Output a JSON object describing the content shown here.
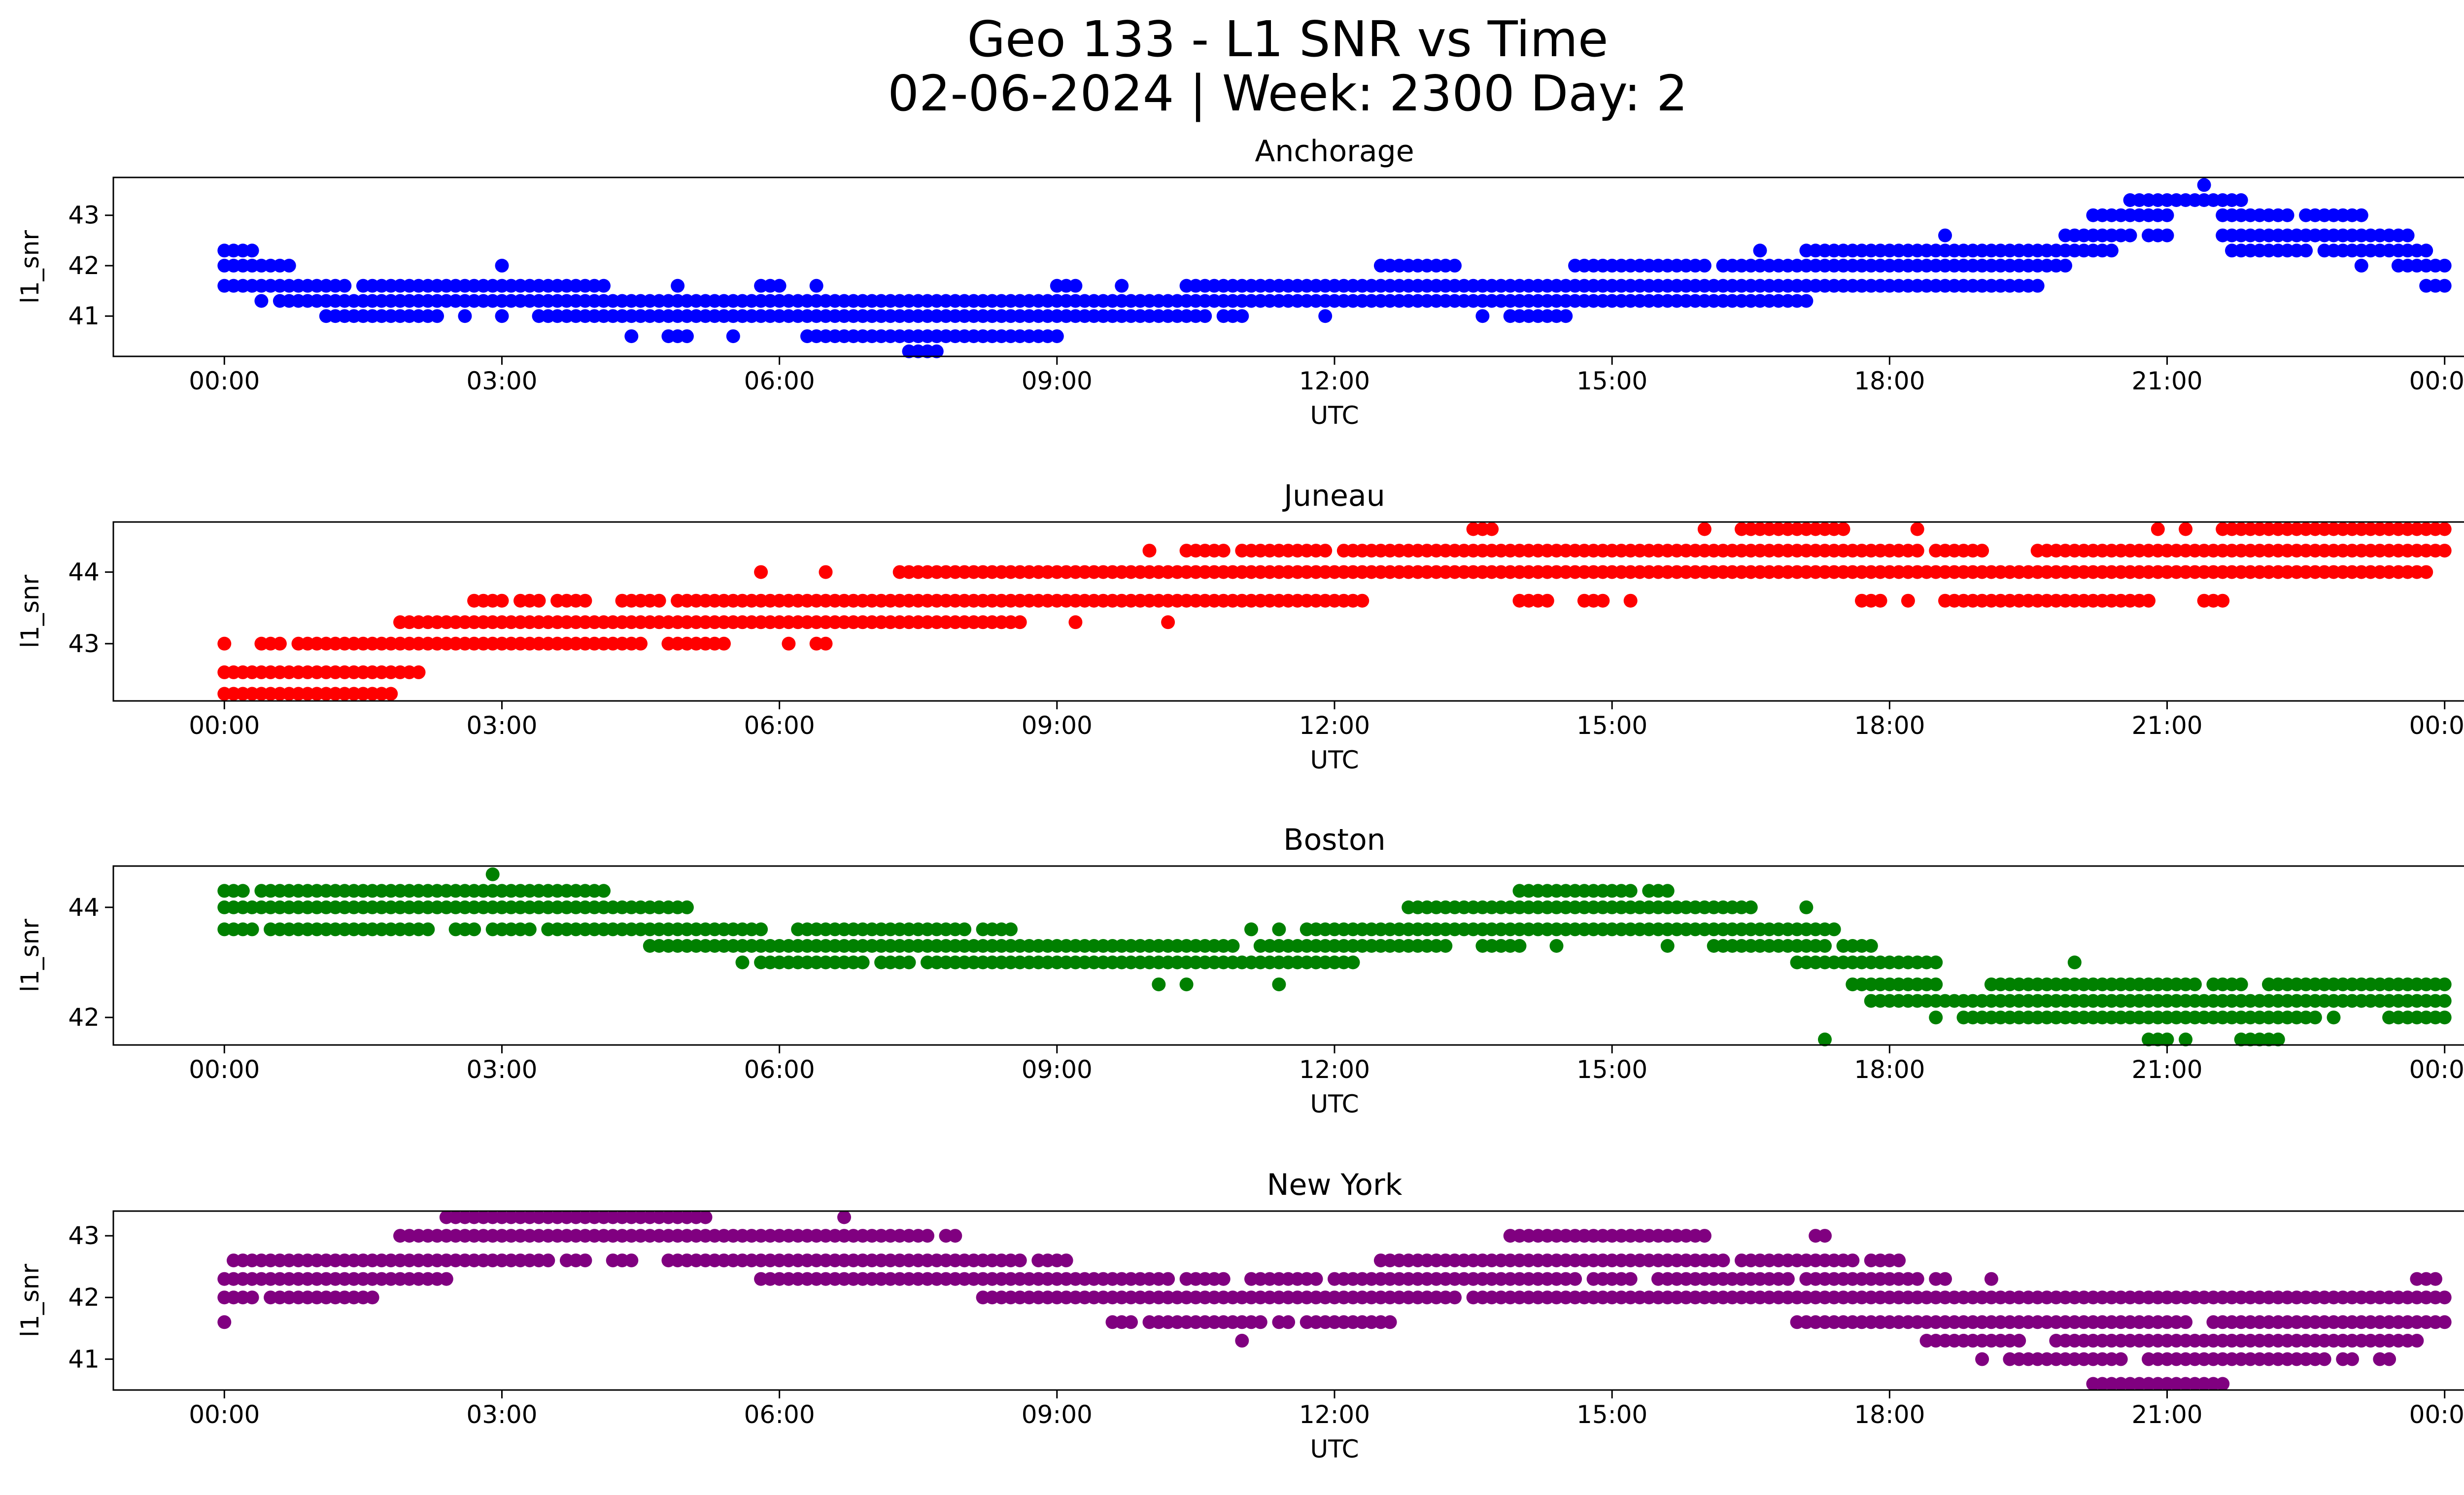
{
  "figure": {
    "title_line1": "Geo 133 - L1 SNR vs Time",
    "title_line2": "02-06-2024 | Week: 2300 Day: 2"
  },
  "chart_data": [
    {
      "type": "scatter",
      "title": "Anchorage",
      "xlabel": "UTC",
      "ylabel": "l1_snr",
      "color": "#0000ff",
      "x_ticks": [
        "00:00",
        "03:00",
        "06:00",
        "09:00",
        "12:00",
        "15:00",
        "18:00",
        "21:00",
        "00:00"
      ],
      "y_ticks": [
        41,
        42,
        43
      ],
      "xlim_hours": [
        -1.2,
        25.2
      ],
      "ylim": [
        40.2,
        43.75
      ],
      "levels": [
        {
          "y": 43.6,
          "segments": [
            [
              21.4,
              21.4
            ]
          ]
        },
        {
          "y": 43.3,
          "segments": [
            [
              20.6,
              21.8
            ]
          ]
        },
        {
          "y": 43.0,
          "segments": [
            [
              20.2,
              21.0
            ],
            [
              21.6,
              22.3
            ],
            [
              22.5,
              23.1
            ]
          ]
        },
        {
          "y": 42.6,
          "segments": [
            [
              18.6,
              18.6
            ],
            [
              19.9,
              20.6
            ],
            [
              20.8,
              21.0
            ],
            [
              21.6,
              23.6
            ]
          ]
        },
        {
          "y": 42.3,
          "segments": [
            [
              0.0,
              0.3
            ],
            [
              16.6,
              16.6
            ],
            [
              17.1,
              20.4
            ],
            [
              21.7,
              22.5
            ],
            [
              22.7,
              23.8
            ]
          ]
        },
        {
          "y": 42.0,
          "segments": [
            [
              0.0,
              0.7
            ],
            [
              3.0,
              3.0
            ],
            [
              12.5,
              13.3
            ],
            [
              14.6,
              16.0
            ],
            [
              16.2,
              19.9
            ],
            [
              23.1,
              23.1
            ],
            [
              23.5,
              24.0
            ]
          ]
        },
        {
          "y": 41.6,
          "segments": [
            [
              0.0,
              1.3
            ],
            [
              1.5,
              4.1
            ],
            [
              4.9,
              4.9
            ],
            [
              5.8,
              6.0
            ],
            [
              6.4,
              6.4
            ],
            [
              9.0,
              9.2
            ],
            [
              9.7,
              9.7
            ],
            [
              10.4,
              19.6
            ],
            [
              23.8,
              24.0
            ]
          ]
        },
        {
          "y": 41.3,
          "segments": [
            [
              0.4,
              0.4
            ],
            [
              0.6,
              17.1
            ]
          ]
        },
        {
          "y": 41.0,
          "segments": [
            [
              1.1,
              2.3
            ],
            [
              2.6,
              2.6
            ],
            [
              3.0,
              3.0
            ],
            [
              3.4,
              10.6
            ],
            [
              10.8,
              11.0
            ],
            [
              11.9,
              11.9
            ],
            [
              13.6,
              13.6
            ],
            [
              13.9,
              14.5
            ]
          ]
        },
        {
          "y": 40.6,
          "segments": [
            [
              4.4,
              4.4
            ],
            [
              4.8,
              5.0
            ],
            [
              5.5,
              5.5
            ],
            [
              6.3,
              9.0
            ]
          ]
        },
        {
          "y": 40.3,
          "segments": [
            [
              7.4,
              7.7
            ]
          ]
        }
      ]
    },
    {
      "type": "scatter",
      "title": "Juneau",
      "xlabel": "UTC",
      "ylabel": "l1_snr",
      "color": "#ff0000",
      "x_ticks": [
        "00:00",
        "03:00",
        "06:00",
        "09:00",
        "12:00",
        "15:00",
        "18:00",
        "21:00",
        "00:00"
      ],
      "y_ticks": [
        43,
        44
      ],
      "xlim_hours": [
        -1.2,
        25.2
      ],
      "ylim": [
        42.2,
        44.7
      ],
      "levels": [
        {
          "y": 44.6,
          "segments": [
            [
              13.5,
              13.7
            ],
            [
              16.0,
              16.0
            ],
            [
              16.4,
              17.5
            ],
            [
              18.3,
              18.3
            ],
            [
              20.9,
              20.9
            ],
            [
              21.2,
              21.2
            ],
            [
              21.6,
              24.0
            ]
          ]
        },
        {
          "y": 44.3,
          "segments": [
            [
              10.0,
              10.0
            ],
            [
              10.4,
              10.8
            ],
            [
              11.0,
              11.9
            ],
            [
              12.1,
              18.3
            ],
            [
              18.5,
              19.0
            ],
            [
              19.6,
              24.0
            ]
          ]
        },
        {
          "y": 44.0,
          "segments": [
            [
              5.8,
              5.8
            ],
            [
              6.5,
              6.5
            ],
            [
              7.3,
              23.8
            ]
          ]
        },
        {
          "y": 43.6,
          "segments": [
            [
              2.7,
              3.0
            ],
            [
              3.2,
              3.4
            ],
            [
              3.6,
              3.9
            ],
            [
              4.3,
              4.7
            ],
            [
              4.9,
              12.3
            ],
            [
              14.0,
              14.3
            ],
            [
              14.7,
              14.9
            ],
            [
              15.2,
              15.2
            ],
            [
              17.7,
              17.9
            ],
            [
              18.2,
              18.2
            ],
            [
              18.6,
              20.8
            ],
            [
              21.4,
              21.6
            ]
          ]
        },
        {
          "y": 43.3,
          "segments": [
            [
              1.9,
              8.6
            ],
            [
              9.2,
              9.2
            ],
            [
              10.2,
              10.2
            ]
          ]
        },
        {
          "y": 43.0,
          "segments": [
            [
              0.0,
              0.0
            ],
            [
              0.4,
              0.6
            ],
            [
              0.8,
              4.5
            ],
            [
              4.8,
              5.4
            ],
            [
              6.1,
              6.1
            ],
            [
              6.4,
              6.5
            ]
          ]
        },
        {
          "y": 42.6,
          "segments": [
            [
              0.0,
              2.1
            ]
          ]
        },
        {
          "y": 42.3,
          "segments": [
            [
              0.0,
              1.8
            ]
          ]
        }
      ]
    },
    {
      "type": "scatter",
      "title": "Boston",
      "xlabel": "UTC",
      "ylabel": "l1_snr",
      "color": "#008000",
      "x_ticks": [
        "00:00",
        "03:00",
        "06:00",
        "09:00",
        "12:00",
        "15:00",
        "18:00",
        "21:00",
        "00:00"
      ],
      "y_ticks": [
        42,
        44
      ],
      "xlim_hours": [
        -1.2,
        25.2
      ],
      "ylim": [
        41.5,
        44.75
      ],
      "levels": [
        {
          "y": 44.6,
          "segments": [
            [
              2.9,
              2.9
            ]
          ]
        },
        {
          "y": 44.3,
          "segments": [
            [
              0.0,
              0.2
            ],
            [
              0.4,
              0.7
            ],
            [
              0.8,
              1.2
            ],
            [
              1.3,
              4.1
            ],
            [
              14.0,
              14.2
            ],
            [
              14.3,
              15.2
            ],
            [
              15.4,
              15.6
            ]
          ]
        },
        {
          "y": 44.0,
          "segments": [
            [
              0.0,
              5.0
            ],
            [
              12.8,
              16.5
            ],
            [
              17.1,
              17.1
            ]
          ]
        },
        {
          "y": 43.6,
          "segments": [
            [
              0.0,
              0.3
            ],
            [
              0.5,
              1.8
            ],
            [
              1.9,
              2.2
            ],
            [
              2.5,
              2.7
            ],
            [
              2.9,
              3.3
            ],
            [
              3.5,
              5.8
            ],
            [
              6.2,
              7.1
            ],
            [
              7.2,
              8.0
            ],
            [
              8.2,
              8.5
            ],
            [
              11.1,
              11.1
            ],
            [
              11.4,
              11.4
            ],
            [
              11.7,
              17.4
            ]
          ]
        },
        {
          "y": 43.3,
          "segments": [
            [
              4.6,
              10.9
            ],
            [
              11.2,
              13.2
            ],
            [
              13.6,
              13.9
            ],
            [
              14.0,
              14.0
            ],
            [
              14.4,
              14.4
            ],
            [
              15.6,
              15.6
            ],
            [
              16.1,
              17.3
            ],
            [
              17.5,
              17.8
            ]
          ]
        },
        {
          "y": 43.0,
          "segments": [
            [
              5.6,
              5.6
            ],
            [
              5.8,
              6.9
            ],
            [
              7.1,
              7.4
            ],
            [
              7.6,
              12.2
            ],
            [
              17.0,
              18.5
            ]
          ]
        },
        {
          "y": 42.6,
          "segments": [
            [
              10.1,
              10.1
            ],
            [
              10.4,
              10.4
            ],
            [
              11.4,
              11.4
            ],
            [
              17.6,
              18.5
            ],
            [
              19.1,
              20.2
            ],
            [
              20.3,
              21.3
            ],
            [
              21.5,
              21.8
            ],
            [
              22.1,
              24.0
            ]
          ]
        },
        {
          "y": 42.3,
          "segments": [
            [
              17.8,
              24.0
            ]
          ]
        },
        {
          "y": 42.0,
          "segments": [
            [
              18.5,
              18.5
            ],
            [
              18.8,
              22.6
            ],
            [
              22.8,
              22.8
            ],
            [
              23.4,
              23.6
            ],
            [
              23.7,
              24.0
            ]
          ]
        },
        {
          "y": 43.0,
          "segments": [
            [
              20.0,
              20.0
            ]
          ]
        },
        {
          "y": 41.6,
          "segments": [
            [
              17.3,
              17.3
            ],
            [
              20.8,
              21.0
            ],
            [
              21.2,
              21.2
            ],
            [
              21.8,
              22.2
            ]
          ]
        }
      ]
    },
    {
      "type": "scatter",
      "title": "New York",
      "xlabel": "UTC",
      "ylabel": "l1_snr",
      "color": "#800080",
      "x_ticks": [
        "00:00",
        "03:00",
        "06:00",
        "09:00",
        "12:00",
        "15:00",
        "18:00",
        "21:00",
        "00:00"
      ],
      "y_ticks": [
        41,
        42,
        43
      ],
      "xlim_hours": [
        -1.2,
        25.2
      ],
      "ylim": [
        40.5,
        43.4
      ],
      "levels": [
        {
          "y": 43.3,
          "segments": [
            [
              2.4,
              5.2
            ],
            [
              6.7,
              6.7
            ]
          ]
        },
        {
          "y": 43.0,
          "segments": [
            [
              1.9,
              7.6
            ],
            [
              7.8,
              7.9
            ],
            [
              13.9,
              16.0
            ],
            [
              17.2,
              17.3
            ]
          ]
        },
        {
          "y": 42.6,
          "segments": [
            [
              0.1,
              0.4
            ],
            [
              0.5,
              3.5
            ],
            [
              3.7,
              3.9
            ],
            [
              4.2,
              4.4
            ],
            [
              4.8,
              8.6
            ],
            [
              8.8,
              9.1
            ],
            [
              12.5,
              16.2
            ],
            [
              16.4,
              17.6
            ],
            [
              17.8,
              18.1
            ]
          ]
        },
        {
          "y": 42.3,
          "segments": [
            [
              0.0,
              2.4
            ],
            [
              5.8,
              10.2
            ],
            [
              10.4,
              10.8
            ],
            [
              11.1,
              11.8
            ],
            [
              12.0,
              14.6
            ],
            [
              14.8,
              15.2
            ],
            [
              15.5,
              16.9
            ],
            [
              17.1,
              18.3
            ],
            [
              18.5,
              18.6
            ],
            [
              19.1,
              19.1
            ],
            [
              23.7,
              23.9
            ]
          ]
        },
        {
          "y": 42.0,
          "segments": [
            [
              0.0,
              0.3
            ],
            [
              0.5,
              1.6
            ],
            [
              8.2,
              13.3
            ],
            [
              13.5,
              14.2
            ],
            [
              14.3,
              24.0
            ]
          ]
        },
        {
          "y": 41.6,
          "segments": [
            [
              0.0,
              0.0
            ],
            [
              9.6,
              9.8
            ],
            [
              10.0,
              11.2
            ],
            [
              11.4,
              11.5
            ],
            [
              11.7,
              12.6
            ],
            [
              17.0,
              18.1
            ],
            [
              18.2,
              21.2
            ],
            [
              21.5,
              24.0
            ]
          ]
        },
        {
          "y": 41.3,
          "segments": [
            [
              11.0,
              11.0
            ],
            [
              18.4,
              19.4
            ],
            [
              19.8,
              23.7
            ]
          ]
        },
        {
          "y": 41.0,
          "segments": [
            [
              19.0,
              19.0
            ],
            [
              19.3,
              20.5
            ],
            [
              20.8,
              22.7
            ],
            [
              22.9,
              23.0
            ],
            [
              23.3,
              23.4
            ]
          ]
        },
        {
          "y": 40.6,
          "segments": [
            [
              20.2,
              21.6
            ]
          ]
        }
      ]
    }
  ]
}
